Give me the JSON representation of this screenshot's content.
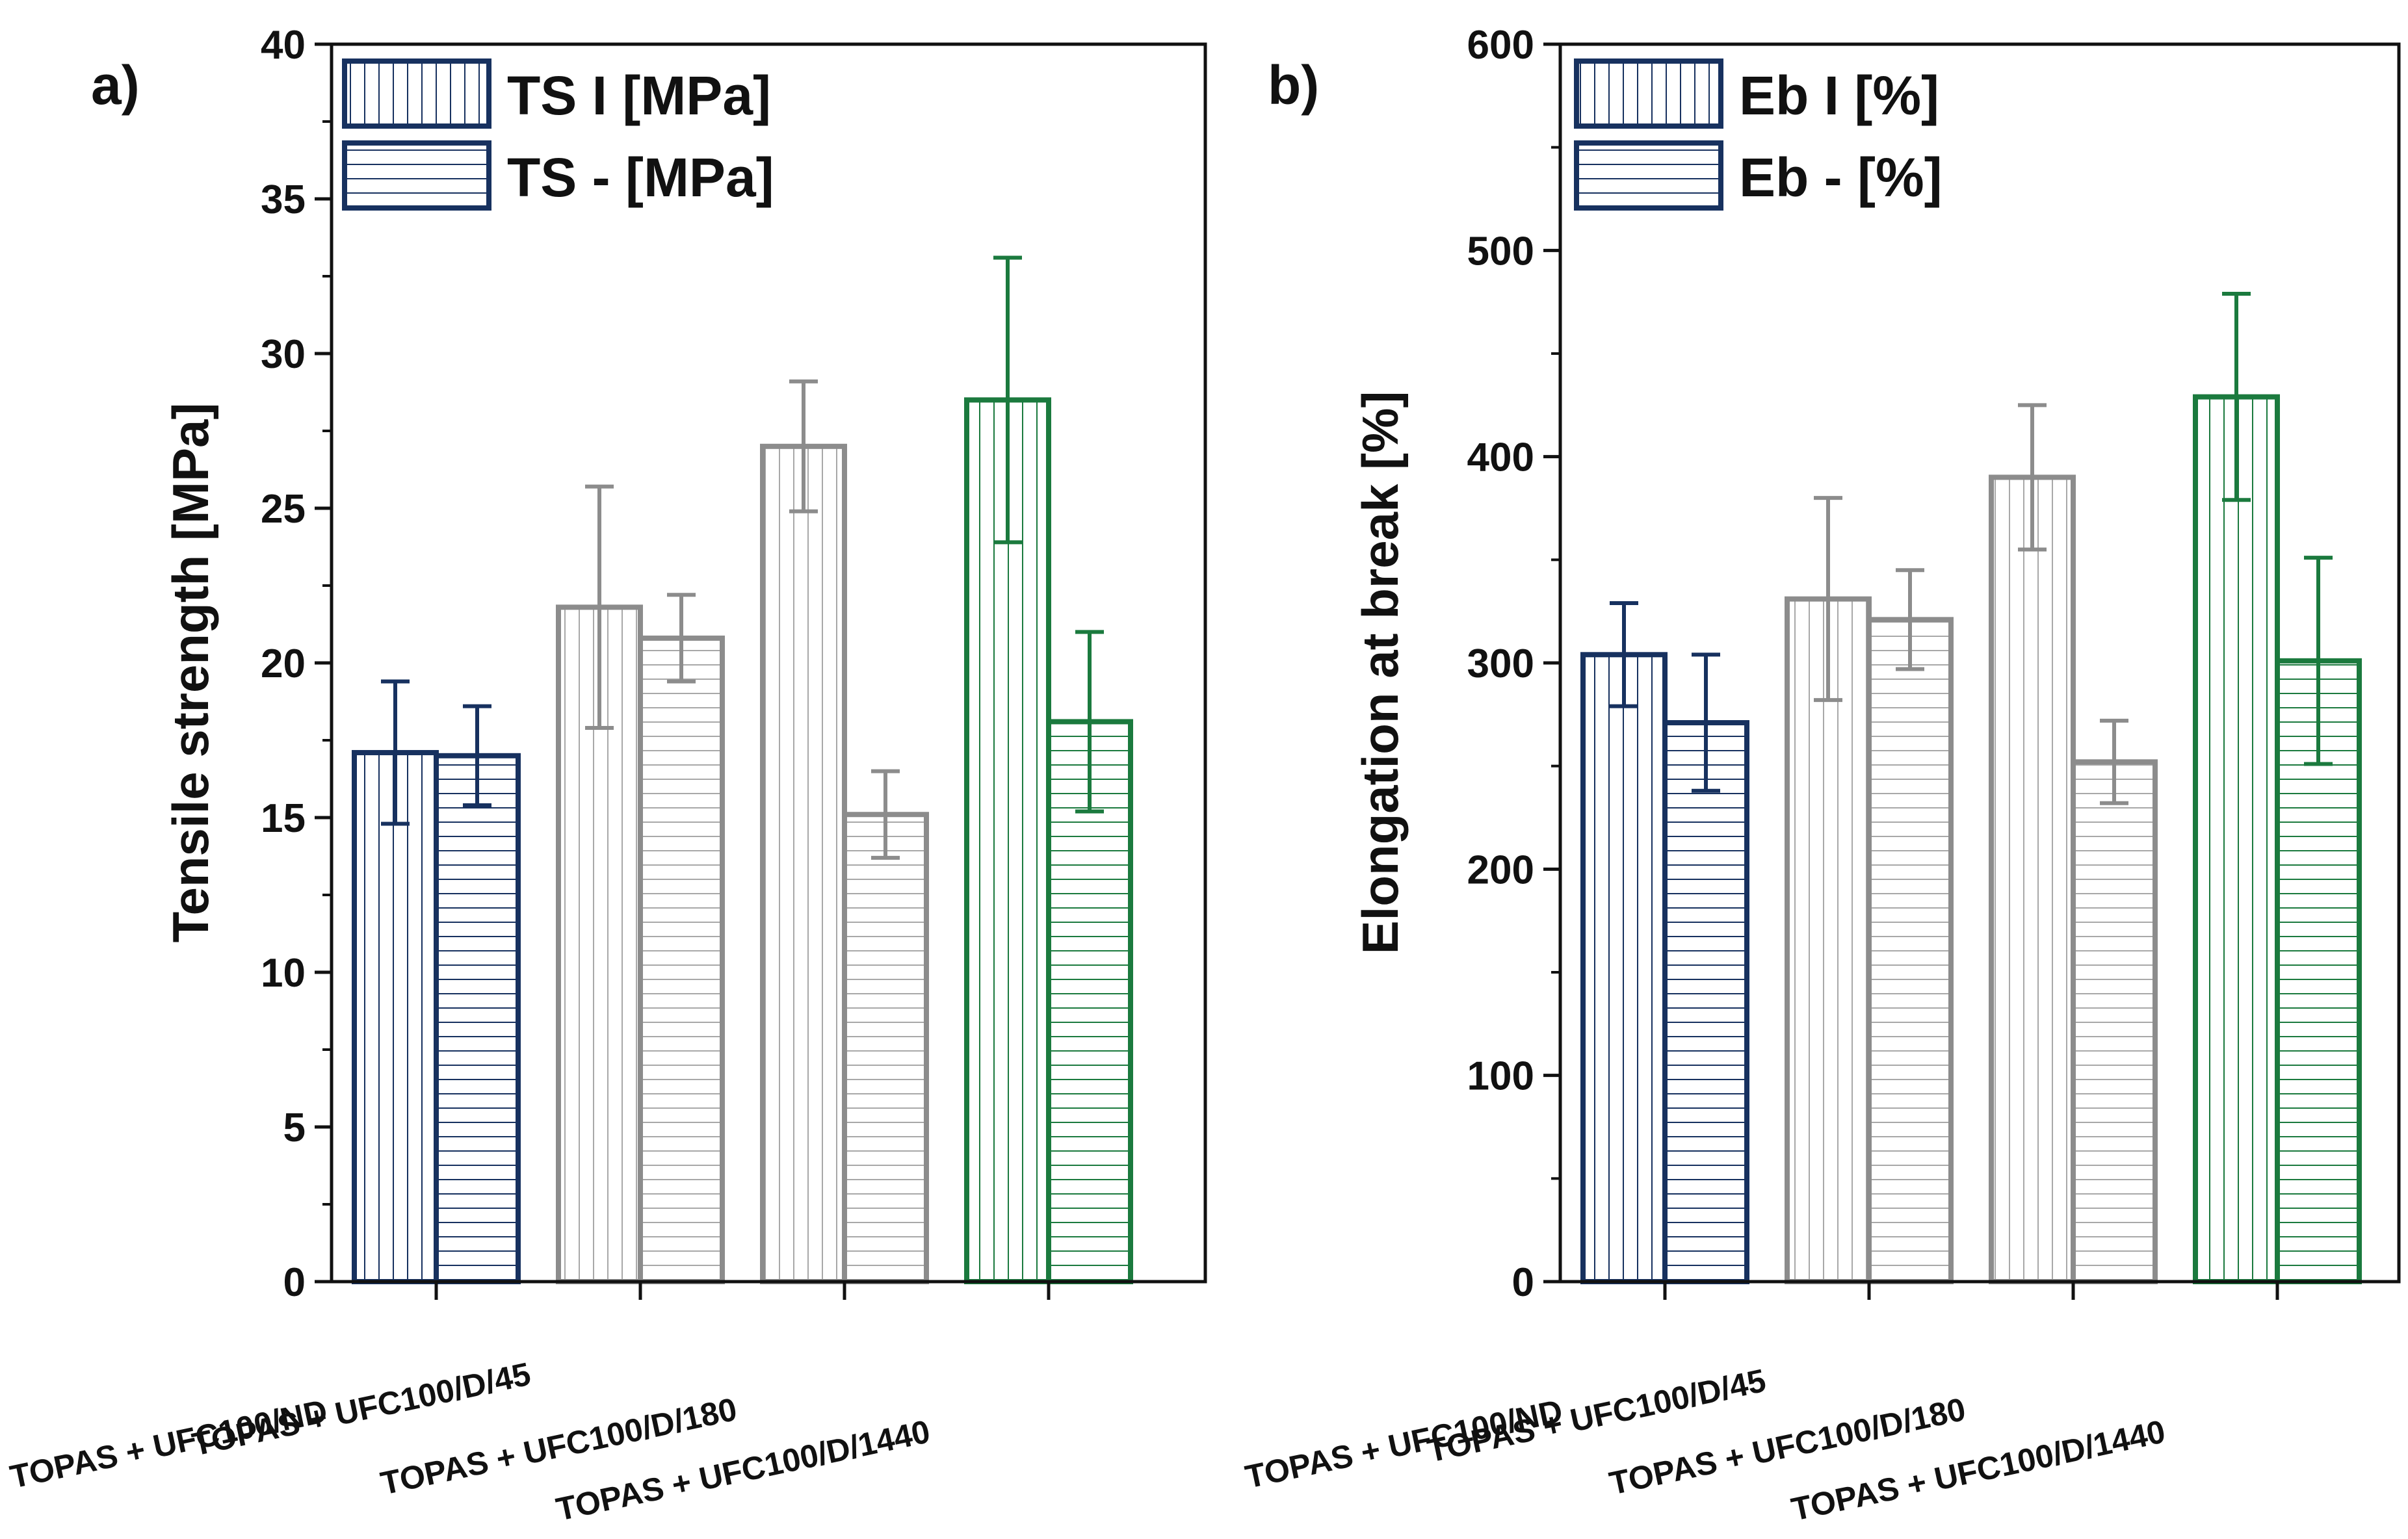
{
  "chart_data": [
    {
      "panel_label": "a)",
      "type": "bar",
      "categories": [
        "TOPAS + UFC100/ND",
        "TOPAS + UFC100/D/45",
        "TOPAS + UFC100/D/180",
        "TOPAS + UFC100/D/1440"
      ],
      "ylabel": "Tensile strength [MPa]",
      "xlabel": "",
      "ylim": [
        0,
        40
      ],
      "yticks": [
        0,
        5,
        10,
        15,
        20,
        25,
        30,
        35,
        40
      ],
      "legend_position": "top-left",
      "grid": false,
      "series": [
        {
          "name": "TS I [MPa]",
          "hatch": "vertical",
          "values": [
            17.1,
            21.8,
            27.0,
            28.5
          ],
          "errors": [
            2.3,
            3.9,
            2.1,
            4.6
          ]
        },
        {
          "name": "TS - [MPa]",
          "hatch": "horizontal",
          "values": [
            17.0,
            20.8,
            15.1,
            18.1
          ],
          "errors": [
            1.6,
            1.4,
            1.4,
            2.9
          ]
        }
      ],
      "category_colors": [
        "#17315f",
        "#8c8c8c",
        "#8c8c8c",
        "#1b7a3e"
      ]
    },
    {
      "panel_label": "b)",
      "type": "bar",
      "categories": [
        "TOPAS + UFC100/ND",
        "TOPAS + UFC100/D/45",
        "TOPAS + UFC100/D/180",
        "TOPAS + UFC100/D/1440"
      ],
      "ylabel": "Elongation at break [%]",
      "xlabel": "",
      "ylim": [
        0,
        600
      ],
      "yticks": [
        0,
        100,
        200,
        300,
        400,
        500,
        600
      ],
      "legend_position": "top-left",
      "grid": false,
      "series": [
        {
          "name": "Eb I [%]",
          "hatch": "vertical",
          "values": [
            304,
            331,
            390,
            429
          ],
          "errors": [
            25,
            49,
            35,
            50
          ]
        },
        {
          "name": "Eb - [%]",
          "hatch": "horizontal",
          "values": [
            271,
            321,
            252,
            301
          ],
          "errors": [
            33,
            24,
            20,
            50
          ]
        }
      ],
      "category_colors": [
        "#17315f",
        "#8c8c8c",
        "#8c8c8c",
        "#1b7a3e"
      ]
    }
  ]
}
